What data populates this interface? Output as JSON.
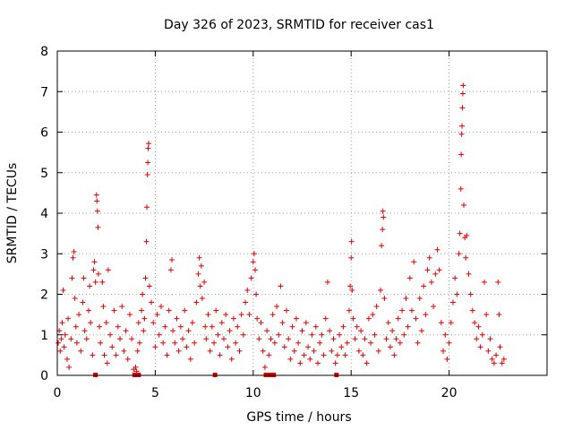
{
  "chart_data": {
    "type": "scatter",
    "title": "Day 326 of 2023, SRMTID for receiver cas1",
    "xlabel": "GPS time / hours",
    "ylabel": "SRMTID / TECUs",
    "xlim": [
      0,
      25
    ],
    "ylim": [
      0,
      8
    ],
    "xticks": [
      0,
      5,
      10,
      15,
      20
    ],
    "yticks": [
      0,
      1,
      2,
      3,
      4,
      5,
      6,
      7,
      8
    ],
    "xtick_labels": [
      "0",
      "5",
      "10",
      "15",
      "20"
    ],
    "ytick_labels": [
      "0",
      "1",
      "2",
      "3",
      "4",
      "5",
      "6",
      "7",
      "8"
    ],
    "grid": true,
    "marker": "plus",
    "color": "#e00000",
    "series": [
      {
        "name": "SRMTID",
        "points": [
          [
            0.05,
            0.8
          ],
          [
            0.1,
            1.1
          ],
          [
            0.15,
            0.6
          ],
          [
            0.2,
            0.9
          ],
          [
            0.25,
            1.3
          ],
          [
            0.3,
            2.1
          ],
          [
            0.35,
            0.7
          ],
          [
            0.4,
            1.0
          ],
          [
            0.5,
            0.4
          ],
          [
            0.55,
            1.4
          ],
          [
            0.6,
            0.2
          ],
          [
            0.7,
            0.9
          ],
          [
            0.75,
            2.4
          ],
          [
            0.8,
            2.9
          ],
          [
            0.85,
            3.05
          ],
          [
            0.9,
            1.9
          ],
          [
            0.95,
            1.2
          ],
          [
            1.0,
            0.8
          ],
          [
            1.1,
            1.5
          ],
          [
            1.2,
            0.6
          ],
          [
            1.3,
            1.8
          ],
          [
            1.35,
            2.4
          ],
          [
            1.4,
            1.1
          ],
          [
            1.5,
            0.9
          ],
          [
            1.6,
            1.6
          ],
          [
            1.65,
            2.2
          ],
          [
            1.7,
            1.3
          ],
          [
            1.8,
            0.5
          ],
          [
            1.85,
            2.6
          ],
          [
            1.9,
            2.8
          ],
          [
            1.95,
            2.3
          ],
          [
            2.0,
            4.45
          ],
          [
            2.02,
            4.3
          ],
          [
            2.05,
            4.05
          ],
          [
            2.08,
            3.65
          ],
          [
            2.1,
            2.5
          ],
          [
            2.15,
            1.2
          ],
          [
            2.2,
            0.8
          ],
          [
            2.3,
            2.3
          ],
          [
            2.35,
            1.7
          ],
          [
            2.4,
            0.5
          ],
          [
            2.5,
            1.3
          ],
          [
            2.55,
            0.3
          ],
          [
            2.6,
            2.6
          ],
          [
            2.7,
            1.0
          ],
          [
            2.8,
            0.7
          ],
          [
            2.9,
            1.6
          ],
          [
            3.0,
            0.5
          ],
          [
            3.1,
            1.2
          ],
          [
            3.2,
            0.9
          ],
          [
            3.3,
            1.7
          ],
          [
            3.4,
            0.6
          ],
          [
            3.5,
            1.1
          ],
          [
            3.6,
            0.4
          ],
          [
            3.7,
            1.5
          ],
          [
            3.8,
            0.9
          ],
          [
            3.9,
            0.15
          ],
          [
            4.0,
            0.2
          ],
          [
            4.05,
            0.1
          ],
          [
            4.1,
            0.6
          ],
          [
            4.15,
            1.3
          ],
          [
            4.2,
            0.8
          ],
          [
            4.3,
            1.6
          ],
          [
            4.35,
            2.0
          ],
          [
            4.4,
            1.1
          ],
          [
            4.45,
            1.4
          ],
          [
            4.5,
            2.4
          ],
          [
            4.55,
            3.3
          ],
          [
            4.57,
            4.15
          ],
          [
            4.6,
            4.95
          ],
          [
            4.62,
            5.25
          ],
          [
            4.64,
            5.6
          ],
          [
            4.66,
            5.72
          ],
          [
            4.7,
            2.2
          ],
          [
            4.8,
            1.8
          ],
          [
            4.9,
            1.3
          ],
          [
            5.0,
            0.7
          ],
          [
            5.1,
            1.5
          ],
          [
            5.2,
            1.0
          ],
          [
            5.3,
            1.7
          ],
          [
            5.4,
            0.8
          ],
          [
            5.5,
            1.2
          ],
          [
            5.6,
            0.5
          ],
          [
            5.7,
            1.6
          ],
          [
            5.8,
            2.6
          ],
          [
            5.85,
            2.85
          ],
          [
            5.9,
            1.1
          ],
          [
            6.0,
            0.8
          ],
          [
            6.1,
            1.4
          ],
          [
            6.2,
            0.6
          ],
          [
            6.3,
            1.2
          ],
          [
            6.4,
            0.9
          ],
          [
            6.5,
            1.6
          ],
          [
            6.6,
            0.7
          ],
          [
            6.7,
            1.1
          ],
          [
            6.8,
            0.4
          ],
          [
            6.9,
            1.3
          ],
          [
            7.0,
            0.8
          ],
          [
            7.1,
            1.8
          ],
          [
            7.2,
            2.5
          ],
          [
            7.25,
            2.9
          ],
          [
            7.3,
            2.2
          ],
          [
            7.35,
            2.7
          ],
          [
            7.4,
            1.9
          ],
          [
            7.5,
            2.3
          ],
          [
            7.55,
            1.2
          ],
          [
            7.6,
            0.9
          ],
          [
            7.7,
            1.5
          ],
          [
            7.8,
            0.6
          ],
          [
            7.9,
            1.2
          ],
          [
            8.0,
            0.8
          ],
          [
            8.1,
            1.6
          ],
          [
            8.2,
            1.0
          ],
          [
            8.3,
            0.5
          ],
          [
            8.4,
            1.3
          ],
          [
            8.5,
            0.9
          ],
          [
            8.6,
            1.5
          ],
          [
            8.7,
            0.7
          ],
          [
            8.8,
            1.1
          ],
          [
            8.9,
            0.4
          ],
          [
            9.0,
            1.4
          ],
          [
            9.1,
            0.8
          ],
          [
            9.2,
            1.2
          ],
          [
            9.3,
            0.6
          ],
          [
            9.4,
            1.5
          ],
          [
            9.5,
            1.0
          ],
          [
            9.6,
            1.8
          ],
          [
            9.7,
            2.1
          ],
          [
            9.8,
            1.5
          ],
          [
            9.9,
            2.4
          ],
          [
            10.0,
            2.8
          ],
          [
            10.05,
            3.0
          ],
          [
            10.1,
            2.6
          ],
          [
            10.15,
            2.0
          ],
          [
            10.2,
            1.4
          ],
          [
            10.3,
            0.9
          ],
          [
            10.4,
            1.3
          ],
          [
            10.5,
            0.6
          ],
          [
            10.6,
            0.2
          ],
          [
            10.7,
            1.1
          ],
          [
            10.8,
            0.5
          ],
          [
            10.9,
            0.9
          ],
          [
            11.0,
            1.5
          ],
          [
            11.1,
            0.8
          ],
          [
            11.2,
            1.7
          ],
          [
            11.3,
            1.0
          ],
          [
            11.4,
            2.2
          ],
          [
            11.5,
            1.3
          ],
          [
            11.6,
            0.7
          ],
          [
            11.7,
            1.6
          ],
          [
            11.8,
            0.9
          ],
          [
            11.9,
            0.4
          ],
          [
            12.0,
            1.2
          ],
          [
            12.1,
            0.6
          ],
          [
            12.2,
            1.4
          ],
          [
            12.3,
            0.8
          ],
          [
            12.4,
            0.3
          ],
          [
            12.5,
            1.1
          ],
          [
            12.6,
            0.5
          ],
          [
            12.7,
            1.3
          ],
          [
            12.8,
            0.7
          ],
          [
            12.9,
            0.4
          ],
          [
            13.0,
            1.0
          ],
          [
            13.1,
            0.6
          ],
          [
            13.2,
            1.2
          ],
          [
            13.3,
            0.3
          ],
          [
            13.4,
            0.8
          ],
          [
            13.5,
            1.0
          ],
          [
            13.6,
            0.5
          ],
          [
            13.7,
            1.4
          ],
          [
            13.8,
            2.3
          ],
          [
            13.9,
            1.1
          ],
          [
            14.0,
            0.6
          ],
          [
            14.1,
            0.9
          ],
          [
            14.2,
            0.3
          ],
          [
            14.3,
            0.5
          ],
          [
            14.4,
            1.0
          ],
          [
            14.5,
            0.7
          ],
          [
            14.6,
            1.2
          ],
          [
            14.7,
            0.5
          ],
          [
            14.8,
            0.8
          ],
          [
            14.9,
            1.6
          ],
          [
            14.95,
            2.2
          ],
          [
            15.0,
            2.9
          ],
          [
            15.02,
            3.3
          ],
          [
            15.05,
            2.1
          ],
          [
            15.1,
            1.4
          ],
          [
            15.2,
            0.9
          ],
          [
            15.3,
            1.2
          ],
          [
            15.4,
            0.6
          ],
          [
            15.5,
            1.1
          ],
          [
            15.6,
            0.5
          ],
          [
            15.7,
            0.9
          ],
          [
            15.8,
            0.3
          ],
          [
            15.9,
            1.4
          ],
          [
            16.0,
            0.8
          ],
          [
            16.1,
            1.5
          ],
          [
            16.2,
            1.0
          ],
          [
            16.3,
            1.7
          ],
          [
            16.4,
            0.6
          ],
          [
            16.5,
            2.1
          ],
          [
            16.55,
            3.2
          ],
          [
            16.6,
            3.6
          ],
          [
            16.62,
            4.05
          ],
          [
            16.65,
            3.9
          ],
          [
            16.7,
            1.9
          ],
          [
            16.8,
            0.9
          ],
          [
            16.9,
            1.3
          ],
          [
            17.0,
            0.7
          ],
          [
            17.1,
            1.1
          ],
          [
            17.2,
            0.5
          ],
          [
            17.3,
            0.9
          ],
          [
            17.4,
            1.4
          ],
          [
            17.5,
            0.8
          ],
          [
            17.6,
            1.6
          ],
          [
            17.7,
            1.0
          ],
          [
            17.8,
            1.9
          ],
          [
            17.9,
            1.2
          ],
          [
            18.0,
            2.4
          ],
          [
            18.1,
            1.6
          ],
          [
            18.2,
            2.8
          ],
          [
            18.3,
            1.4
          ],
          [
            18.4,
            0.8
          ],
          [
            18.5,
            1.9
          ],
          [
            18.6,
            1.1
          ],
          [
            18.7,
            2.2
          ],
          [
            18.8,
            1.5
          ],
          [
            18.9,
            2.6
          ],
          [
            19.0,
            2.9
          ],
          [
            19.1,
            2.3
          ],
          [
            19.2,
            1.7
          ],
          [
            19.3,
            2.5
          ],
          [
            19.4,
            3.1
          ],
          [
            19.5,
            2.6
          ],
          [
            19.6,
            1.3
          ],
          [
            19.7,
            0.6
          ],
          [
            19.8,
            1.0
          ],
          [
            19.9,
            0.4
          ],
          [
            20.0,
            0.8
          ],
          [
            20.1,
            1.3
          ],
          [
            20.2,
            1.8
          ],
          [
            20.3,
            2.4
          ],
          [
            20.4,
            2.0
          ],
          [
            20.5,
            3.0
          ],
          [
            20.55,
            3.5
          ],
          [
            20.6,
            4.6
          ],
          [
            20.62,
            5.45
          ],
          [
            20.64,
            5.95
          ],
          [
            20.66,
            6.15
          ],
          [
            20.68,
            6.6
          ],
          [
            20.7,
            6.95
          ],
          [
            20.72,
            7.15
          ],
          [
            20.75,
            4.2
          ],
          [
            20.8,
            3.4
          ],
          [
            20.85,
            2.9
          ],
          [
            20.9,
            3.45
          ],
          [
            21.0,
            2.5
          ],
          [
            21.1,
            2.0
          ],
          [
            21.2,
            1.6
          ],
          [
            21.3,
            1.3
          ],
          [
            21.4,
            0.9
          ],
          [
            21.5,
            1.2
          ],
          [
            21.6,
            0.7
          ],
          [
            21.7,
            1.0
          ],
          [
            21.8,
            2.3
          ],
          [
            21.9,
            1.5
          ],
          [
            22.0,
            0.6
          ],
          [
            22.1,
            0.9
          ],
          [
            22.2,
            0.4
          ],
          [
            22.3,
            0.3
          ],
          [
            22.4,
            0.5
          ],
          [
            22.5,
            2.3
          ],
          [
            22.55,
            1.5
          ],
          [
            22.6,
            0.7
          ],
          [
            22.7,
            0.3
          ],
          [
            22.8,
            0.4
          ]
        ]
      }
    ],
    "zero_points": [
      1.95,
      3.95,
      4.05,
      4.15,
      8.05,
      10.65,
      10.85,
      11.05,
      14.25
    ]
  }
}
